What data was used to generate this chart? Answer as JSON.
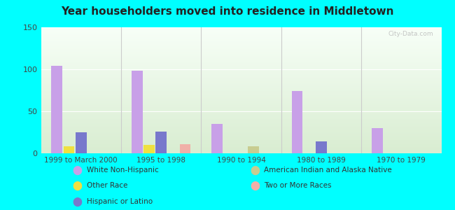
{
  "title": "Year householders moved into residence in Middletown",
  "categories": [
    "1999 to March 2000",
    "1995 to 1998",
    "1990 to 1994",
    "1980 to 1989",
    "1970 to 1979"
  ],
  "series": {
    "White Non-Hispanic": [
      104,
      98,
      35,
      74,
      30
    ],
    "Other Race": [
      8,
      10,
      0,
      0,
      0
    ],
    "Hispanic or Latino": [
      25,
      26,
      0,
      14,
      0
    ],
    "American Indian and Alaska Native": [
      0,
      0,
      8,
      0,
      0
    ],
    "Two or More Races": [
      0,
      11,
      0,
      0,
      0
    ]
  },
  "colors": {
    "White Non-Hispanic": "#c8a0e8",
    "Other Race": "#f0e040",
    "Hispanic or Latino": "#7878cc",
    "American Indian and Alaska Native": "#c8cc90",
    "Two or More Races": "#f0b0a8"
  },
  "ylim": [
    0,
    150
  ],
  "yticks": [
    0,
    50,
    100,
    150
  ],
  "background_color": "#00ffff",
  "watermark": "City-Data.com",
  "legend_col1": [
    "White Non-Hispanic",
    "Other Race",
    "Hispanic or Latino"
  ],
  "legend_col2": [
    "American Indian and Alaska Native",
    "Two or More Races"
  ]
}
